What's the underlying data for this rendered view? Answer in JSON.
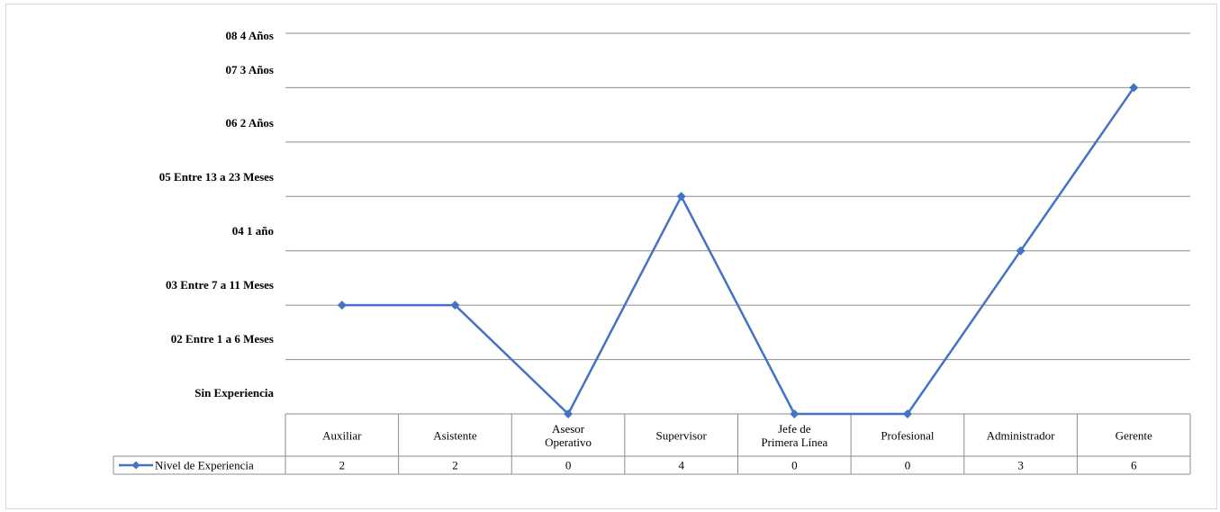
{
  "chart_data": {
    "type": "line",
    "title": "",
    "xlabel": "",
    "ylabel": "",
    "y_levels": [
      "Sin Experiencia",
      "02 Entre 1 a 6 Meses",
      "03 Entre 7 a 11 Meses",
      "04 1 año",
      "05 Entre 13 a 23 Meses",
      "06 2 Años",
      "07 3 Años",
      "08 4 Años"
    ],
    "categories": [
      [
        "Auxiliar"
      ],
      [
        "Asistente"
      ],
      [
        "Asesor",
        "Operativo"
      ],
      [
        "Supervisor"
      ],
      [
        "Jefe de",
        "Primera Línea"
      ],
      [
        "Profesional"
      ],
      [
        "Administrador"
      ],
      [
        "Gerente"
      ]
    ],
    "series": [
      {
        "name": "Nivel de Experiencia",
        "values": [
          2,
          2,
          0,
          4,
          0,
          0,
          3,
          6
        ],
        "color": "#4472c4"
      }
    ],
    "ylim": [
      0,
      7
    ],
    "grid": true,
    "legend": "data-table-left"
  }
}
